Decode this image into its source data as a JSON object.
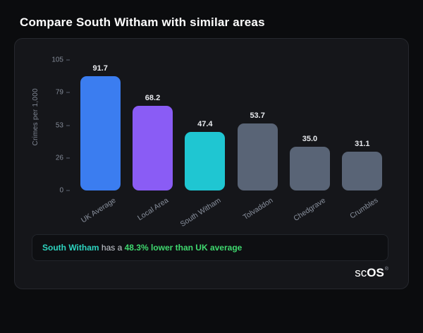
{
  "header": {
    "title": "Compare South Witham with similar areas"
  },
  "chart_data": {
    "type": "bar",
    "title": "",
    "xlabel": "",
    "ylabel": "Crimes per 1,000",
    "categories": [
      "UK Average",
      "Local Area",
      "South Witham",
      "Tolvaddon",
      "Chedgrave",
      "Crumbles"
    ],
    "values": [
      91.7,
      68.2,
      47.4,
      53.7,
      35.0,
      31.1
    ],
    "value_labels": [
      "91.7",
      "68.2",
      "47.4",
      "53.7",
      "35.0",
      "31.1"
    ],
    "bar_colors": [
      "#3b7df0",
      "#8a5cf5",
      "#1fc6d2",
      "#596476",
      "#596476",
      "#596476"
    ],
    "ylim": [
      0,
      105
    ],
    "yticks": [
      "105",
      "79",
      "53",
      "26",
      "0"
    ],
    "grid": false,
    "legend": "none"
  },
  "note": {
    "area_name": "South Witham",
    "connector": " has a ",
    "stat_text": "48.3% lower than UK average"
  },
  "footer_logo": {
    "text_light": "sc",
    "text_bold": "OS",
    "registered": "®"
  },
  "colors": {
    "background": "#0b0c0e",
    "card": "#15161a",
    "area_highlight": "#2dd4bf",
    "stat_highlight": "#3fd96f"
  }
}
